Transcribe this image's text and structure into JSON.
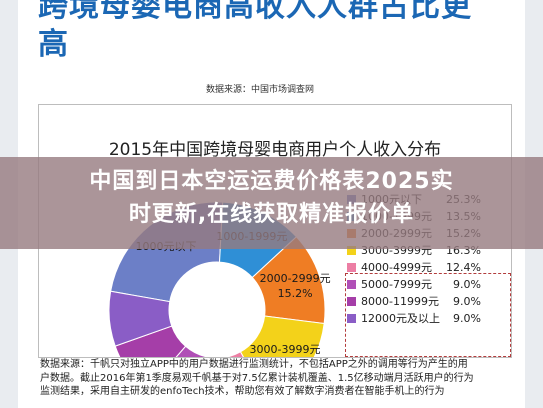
{
  "article": {
    "headline_line1": "跨境母婴电商高收入人群占比更",
    "headline_line2": "高",
    "source": "数据来源：中国市场调查网"
  },
  "chart_data": {
    "type": "pie",
    "title": "2015年中国跨境母婴电商用户个人收入分布",
    "categories": [
      "1000元以下",
      "1000-1999元",
      "2000-2999元",
      "3000-3999元",
      "4000-4999元",
      "5000-7999元",
      "8000-11999元",
      "12000元及以上"
    ],
    "values": [
      25.3,
      13.5,
      15.2,
      16.3,
      12.4,
      9.0,
      9.0,
      9.0
    ],
    "value_labels": [
      "25.3%",
      "13.5%",
      "15.2%",
      "16.3%",
      "12.4%",
      "9.0%",
      "9.0%",
      "9.0%"
    ],
    "inner_labels": [
      "1000元以下",
      "1000-1999元",
      "2000-2999元",
      "3000-3999元",
      "4000-4999元",
      "5000-",
      "",
      ""
    ],
    "inner_value_labels": [
      "",
      "",
      "15.2%",
      "16.3%",
      "12.4%",
      "",
      "",
      ""
    ],
    "colors": [
      "#6c7fc7",
      "#2f8fd6",
      "#ef7d24",
      "#f3d21a",
      "#ec7ea4",
      "#b04fb6",
      "#a53ea8",
      "#8a5dc6"
    ],
    "legend_highlight": [
      "5000-7999元",
      "8000-11999元",
      "12000元及以上"
    ],
    "legend_position": "right"
  },
  "footnote": {
    "line1": "数据来源：千帆只对独立APP中的用户数据进行监测统计，不包括APP之外的调用等行为产生的用",
    "line2": "户数据。截止2016年第1季度易观千帆基于对7.5亿累计装机覆盖、1.5亿移动端月活跃用户的行为",
    "line3": "监测结果，采用自主研发的enfoTech技术，帮助您有效了解数字消费者在智能手机上的行为"
  },
  "banner": {
    "line1": "中国到日本空运运费价格表2025实",
    "line2": "时更新,在线获取精准报价单"
  }
}
